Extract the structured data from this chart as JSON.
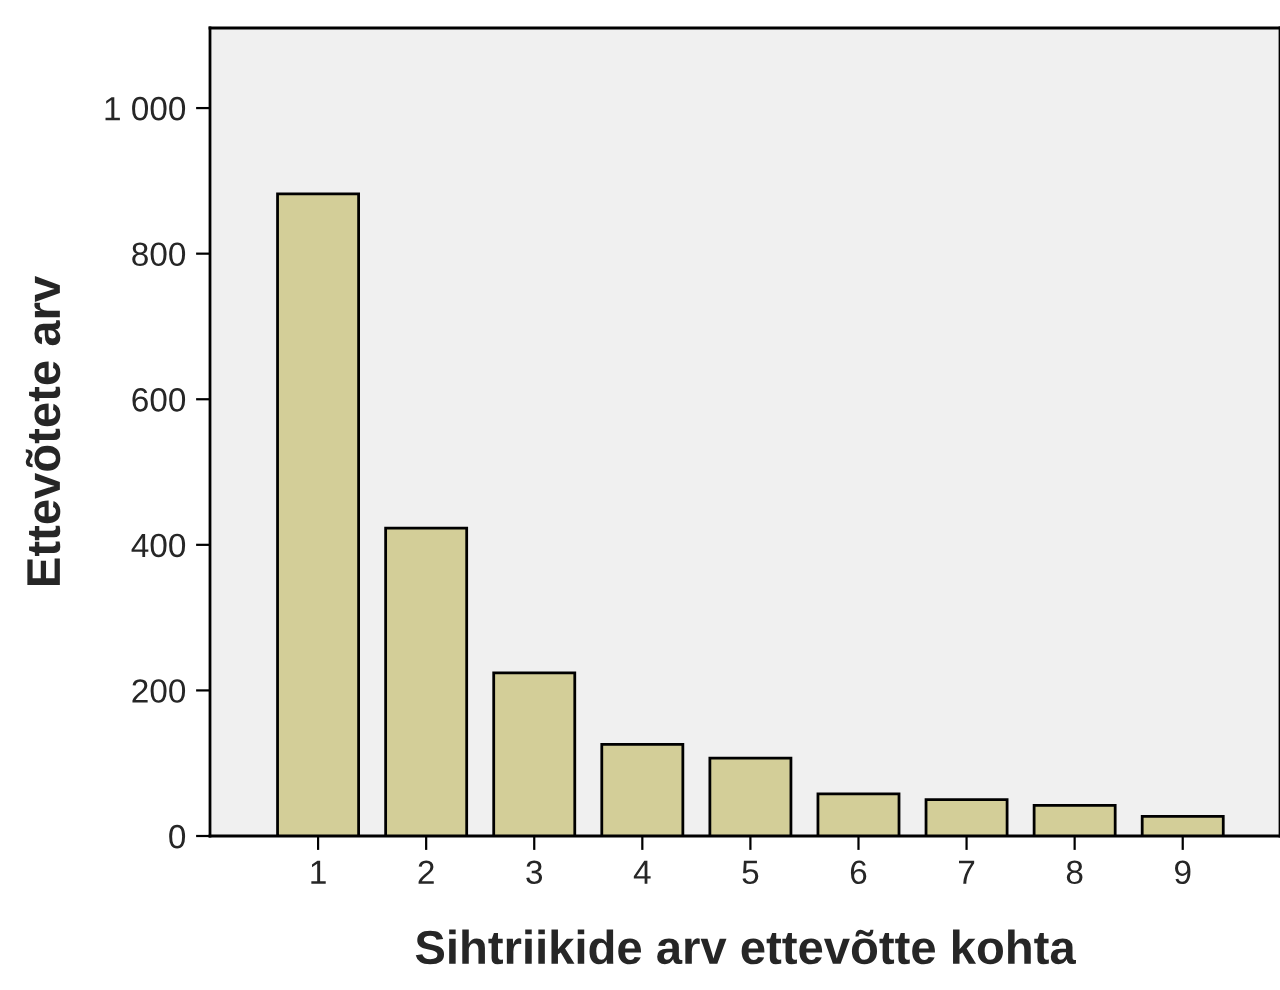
{
  "chart_data": {
    "type": "bar",
    "xlabel": "Sihtriikide arv ettevõtte kohta",
    "ylabel": "Ettevõtete arv",
    "categories": [
      "1",
      "2",
      "3",
      "4",
      "5",
      "6",
      "7",
      "8",
      "9"
    ],
    "values": [
      882,
      423,
      224,
      126,
      107,
      58,
      50,
      42,
      27
    ],
    "color": "#d3ce98",
    "ylim": [
      0,
      1110
    ],
    "yticks": [
      0,
      200,
      400,
      600,
      800,
      {
        "value": 1000,
        "label": "1 000"
      }
    ],
    "grid": false
  }
}
